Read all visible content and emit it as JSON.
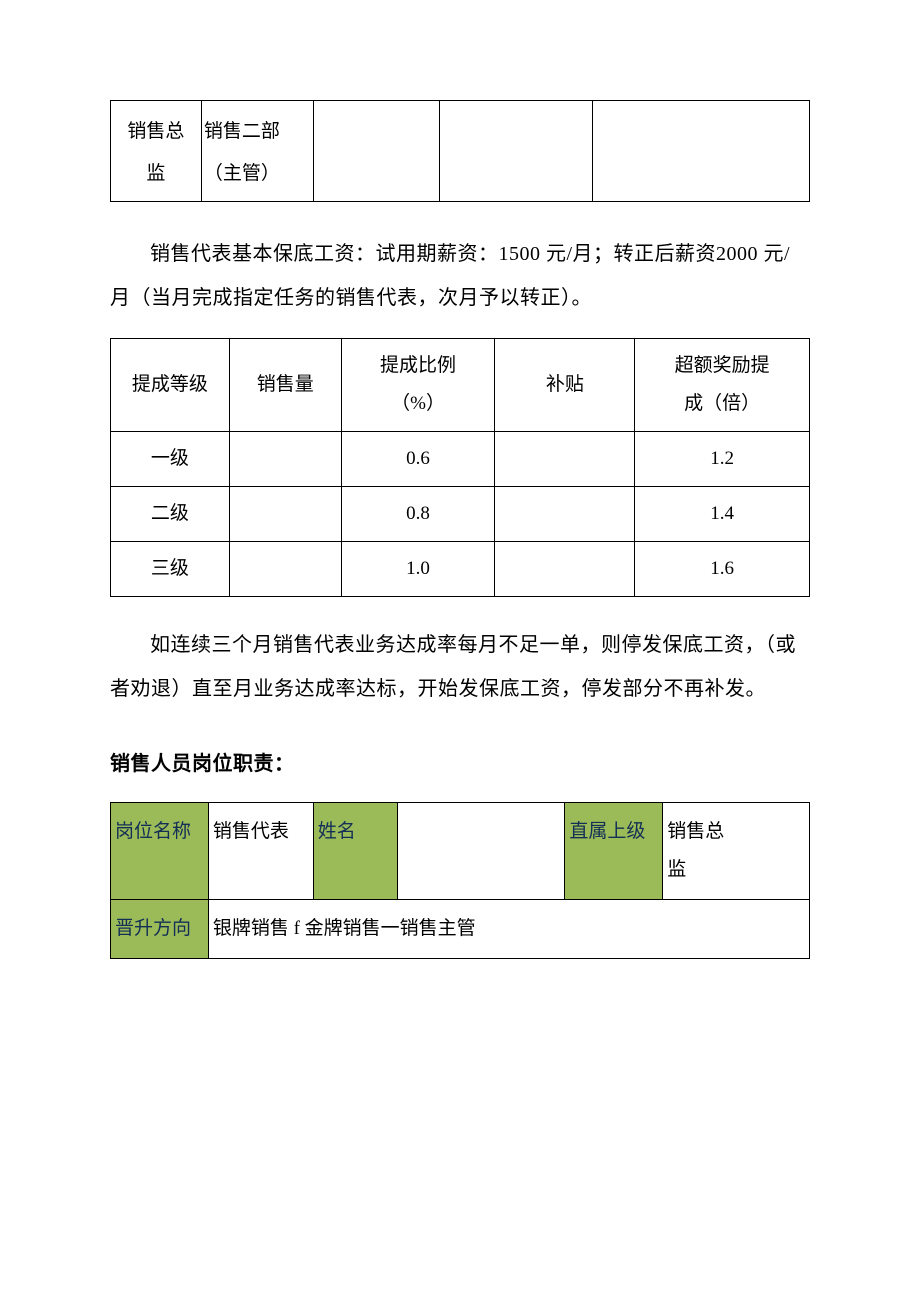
{
  "table1": {
    "col1": "销售总\n监",
    "col2": "销售二部\n（主管）",
    "col3": "",
    "col4": "",
    "col5": ""
  },
  "paragraph1": "销售代表基本保底工资：试用期薪资：1500 元/月；转正后薪资2000 元/月（当月完成指定任务的销售代表，次月予以转正）。",
  "table2": {
    "columns": [
      "提成等级",
      "销售量",
      "提成比例\n（%）",
      "补贴",
      "超额奖励提\n成（倍）"
    ],
    "rows": [
      [
        "一级",
        "",
        "0.6",
        "",
        "1.2"
      ],
      [
        "二级",
        "",
        "0.8",
        "",
        "1.4"
      ],
      [
        "三级",
        "",
        "1.0",
        "",
        "1.6"
      ]
    ]
  },
  "paragraph2": "如连续三个月销售代表业务达成率每月不足一单，则停发保底工资，（或者劝退）直至月业务达成率达标，开始发保底工资，停发部分不再补发。",
  "heading": "销售人员岗位职责：",
  "table3": {
    "row1": {
      "label1": "岗位名称",
      "val1": "销售代表",
      "label2": "姓名",
      "val2": "",
      "label3": "直属上级",
      "val3": "销售总\n监"
    },
    "row2": {
      "label": "晋升方向",
      "val": "银牌销售 f 金牌销售一销售主管"
    }
  },
  "colors": {
    "green_bg": "#9bbb59",
    "green_text": "#132f56",
    "border": "#000000",
    "background": "#ffffff"
  }
}
